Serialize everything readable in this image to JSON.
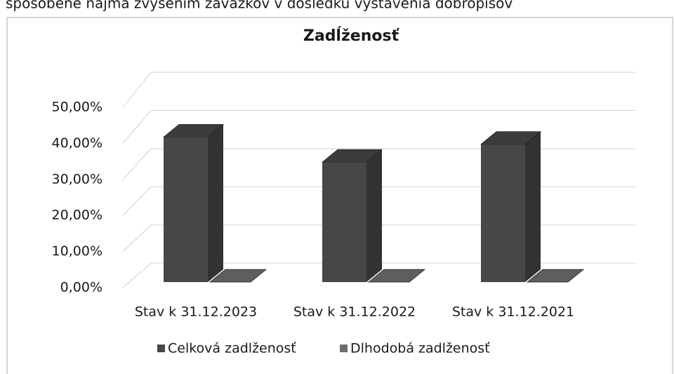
{
  "document_text": "spôsobené najmä zvýšením záväzkov v dôsledku vystavenia dobropisov",
  "chart_data": {
    "type": "bar3d",
    "title": "Zadĺženosť",
    "categories": [
      "Stav k 31.12.2023",
      "Stav k 31.12.2022",
      "Stav k 31.12.2021"
    ],
    "series": [
      {
        "name": "Celková zadlženosť",
        "color": "#474747",
        "values": [
          40.5,
          33.5,
          38.5
        ]
      },
      {
        "name": "Dlhodobá zadlženosť",
        "color": "#6e6e6e",
        "values": [
          0,
          0,
          0
        ]
      }
    ],
    "ylim": [
      0,
      50
    ],
    "yticks": [
      {
        "value": 0,
        "label": "0,00%"
      },
      {
        "value": 10,
        "label": "10,00%"
      },
      {
        "value": 20,
        "label": "20,00%"
      },
      {
        "value": 30,
        "label": "30,00%"
      },
      {
        "value": 40,
        "label": "40,00%"
      },
      {
        "value": 50,
        "label": "50,00%"
      }
    ],
    "grid": true,
    "legend": "bottom"
  }
}
